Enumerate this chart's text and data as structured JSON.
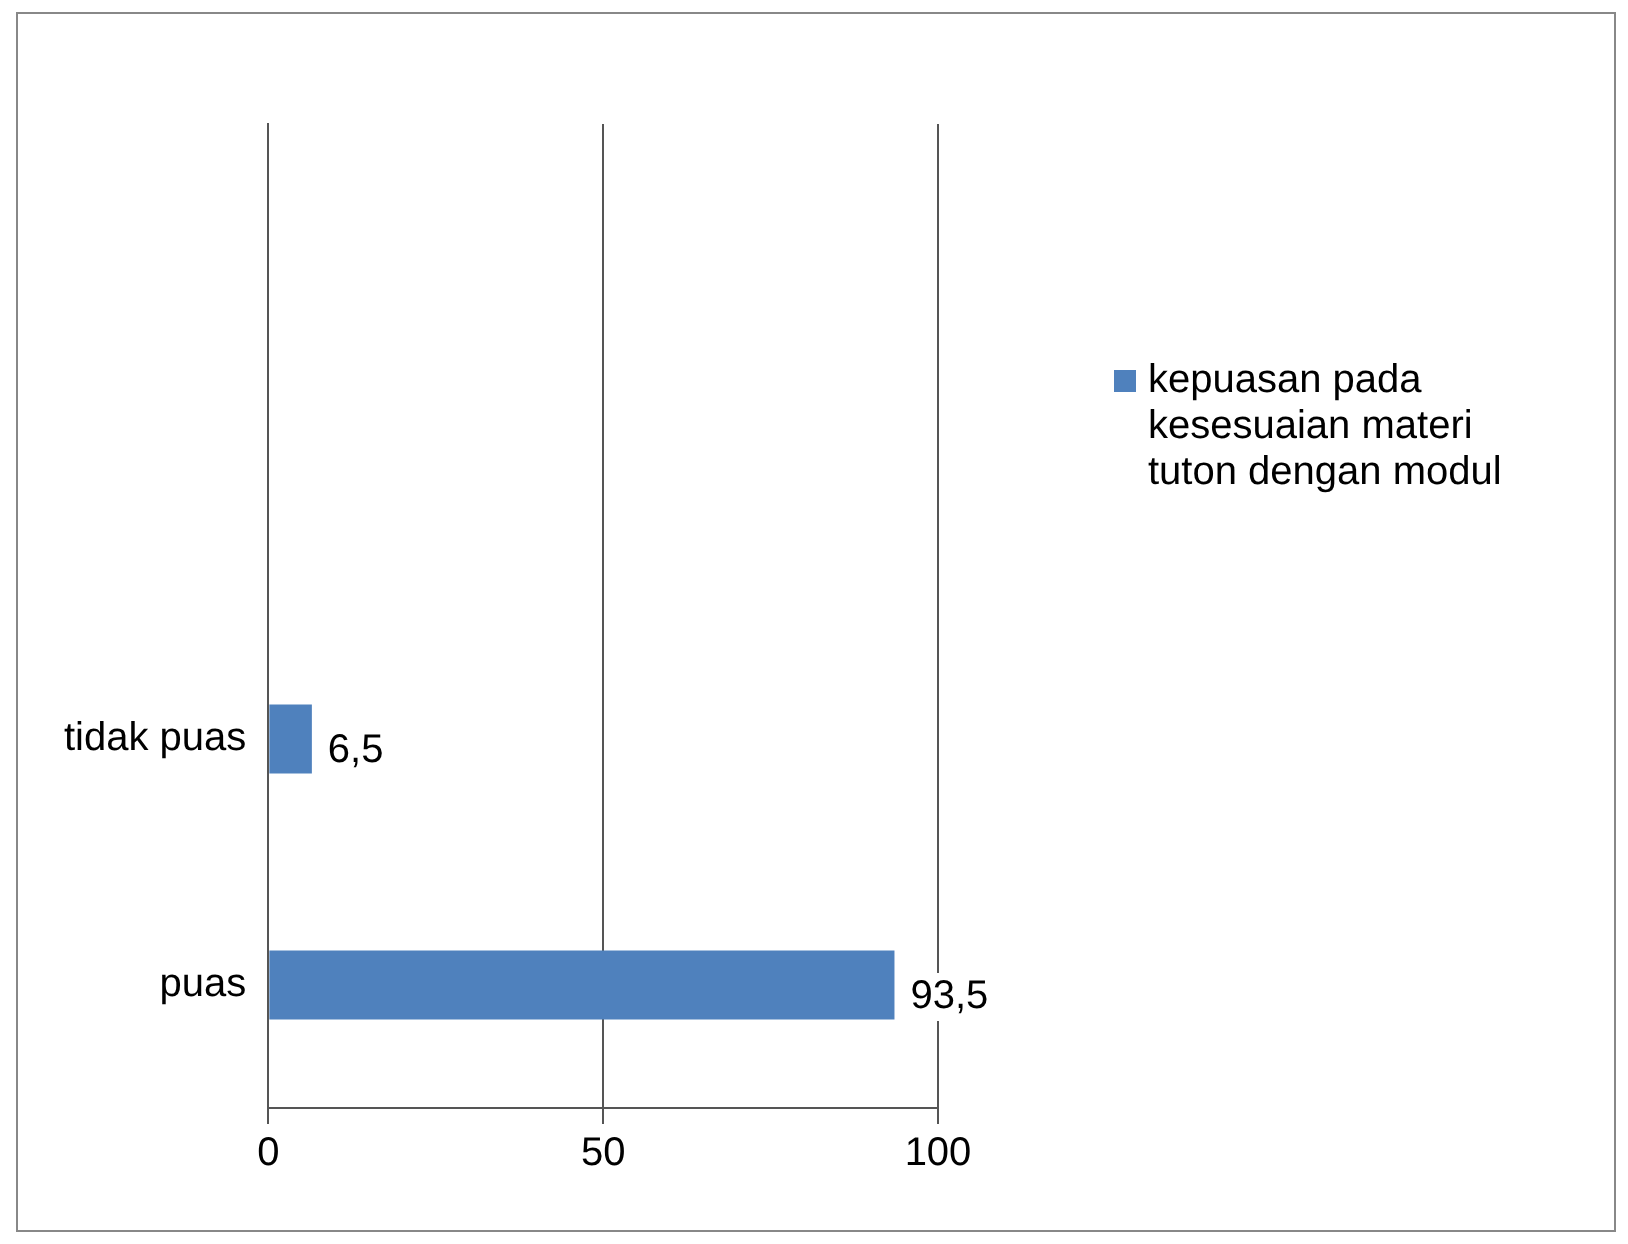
{
  "chart_data": {
    "type": "bar",
    "orientation": "horizontal",
    "categories": [
      null,
      null,
      "tidak puas",
      "puas"
    ],
    "series": [
      {
        "name": "kepuasan pada kesesuaian materi tuton dengan modul",
        "color": "#4f81bd",
        "values": [
          null,
          null,
          6.5,
          93.5
        ],
        "value_labels": [
          null,
          null,
          "6,5",
          "93,5"
        ]
      }
    ],
    "xlim": [
      0,
      100
    ],
    "xticks": [
      0,
      50,
      100
    ],
    "grid": "x",
    "legend": "right"
  }
}
